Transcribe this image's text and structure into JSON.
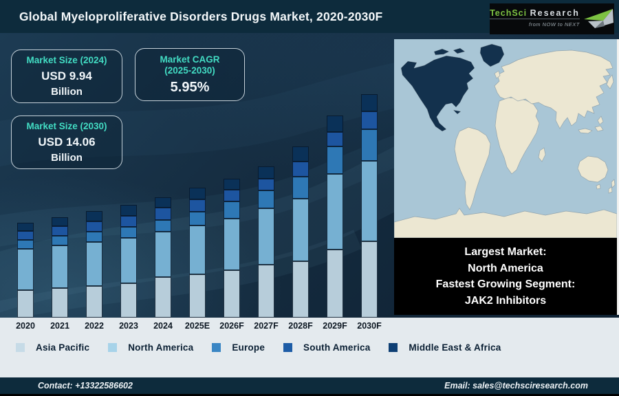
{
  "header": {
    "title": "Global Myeloproliferative Disorders Drugs Market, 2020-2030F",
    "logo": {
      "brand_primary": "TechSci",
      "brand_secondary": "Research",
      "tagline": "from NOW to NEXT"
    }
  },
  "stat_boxes": [
    {
      "label_line1": "Market Size (2024)",
      "label_line2": "",
      "value": "USD 9.94",
      "unit": "Billion"
    },
    {
      "label_line1": "Market CAGR",
      "label_line2": "(2025-2030)",
      "value": "5.95%",
      "unit": ""
    },
    {
      "label_line1": "Market Size (2030)",
      "label_line2": "",
      "value": "USD 14.06",
      "unit": "Billion"
    }
  ],
  "chart_data": {
    "type": "bar",
    "stacked": true,
    "title": "Global Myeloproliferative Disorders Drugs Market, 2020-2030F",
    "categories": [
      "2020",
      "2021",
      "2022",
      "2023",
      "2024",
      "2025E",
      "2026F",
      "2027F",
      "2028F",
      "2029F",
      "2030F"
    ],
    "y_axis": "no axis shown; values are relative stacked heights (px) read from the figure",
    "anchors": {
      "total_2024": "USD 9.94 Billion",
      "total_2030": "USD 14.06 Billion",
      "cagr_2025_2030": "5.95%"
    },
    "series": [
      {
        "name": "Asia Pacific",
        "bar_color": "#b7cdda",
        "legend_color": "#c6dbe7",
        "values": [
          40,
          43,
          46,
          50,
          59,
          63,
          69,
          77,
          82,
          99,
          111
        ]
      },
      {
        "name": "North America",
        "bar_color": "#76b0d2",
        "legend_color": "#a7d3e9",
        "values": [
          60,
          62,
          64,
          66,
          66,
          71,
          75,
          82,
          91,
          110,
          117
        ]
      },
      {
        "name": "Europe",
        "bar_color": "#2e78b5",
        "legend_color": "#3a86c4",
        "values": [
          13,
          14,
          15,
          16,
          17,
          20,
          25,
          26,
          32,
          40,
          46
        ]
      },
      {
        "name": "South America",
        "bar_color": "#1d55a0",
        "legend_color": "#1d5ca6",
        "values": [
          13,
          14,
          15,
          16,
          18,
          18,
          17,
          17,
          22,
          21,
          26
        ]
      },
      {
        "name": "Middle East & Africa",
        "bar_color": "#0a3158",
        "legend_color": "#0e3f74",
        "values": [
          12,
          13,
          15,
          16,
          15,
          17,
          16,
          18,
          22,
          24,
          25
        ]
      }
    ],
    "totals_relative": [
      138,
      146,
      155,
      164,
      175,
      189,
      202,
      220,
      249,
      294,
      325
    ],
    "legend_position": "bottom",
    "grid": false
  },
  "info_box": {
    "lines": [
      "Largest Market:",
      "North America",
      "Fastest Growing Segment:",
      "JAK2 Inhibitors"
    ]
  },
  "map": {
    "highlight_region": "North America",
    "ocean_color": "#a9c6d6",
    "land_color": "#ece7d2",
    "highlight_color": "#13314d",
    "outline_color": "#93a5ae"
  },
  "footer": {
    "contact": "Contact: +13322586602",
    "email": "Email: sales@techsciresearch.com"
  },
  "theme": {
    "header_bg": "#0d2b3c",
    "accent_teal": "#42dcc3",
    "strip_bg": "#e4eaee"
  }
}
